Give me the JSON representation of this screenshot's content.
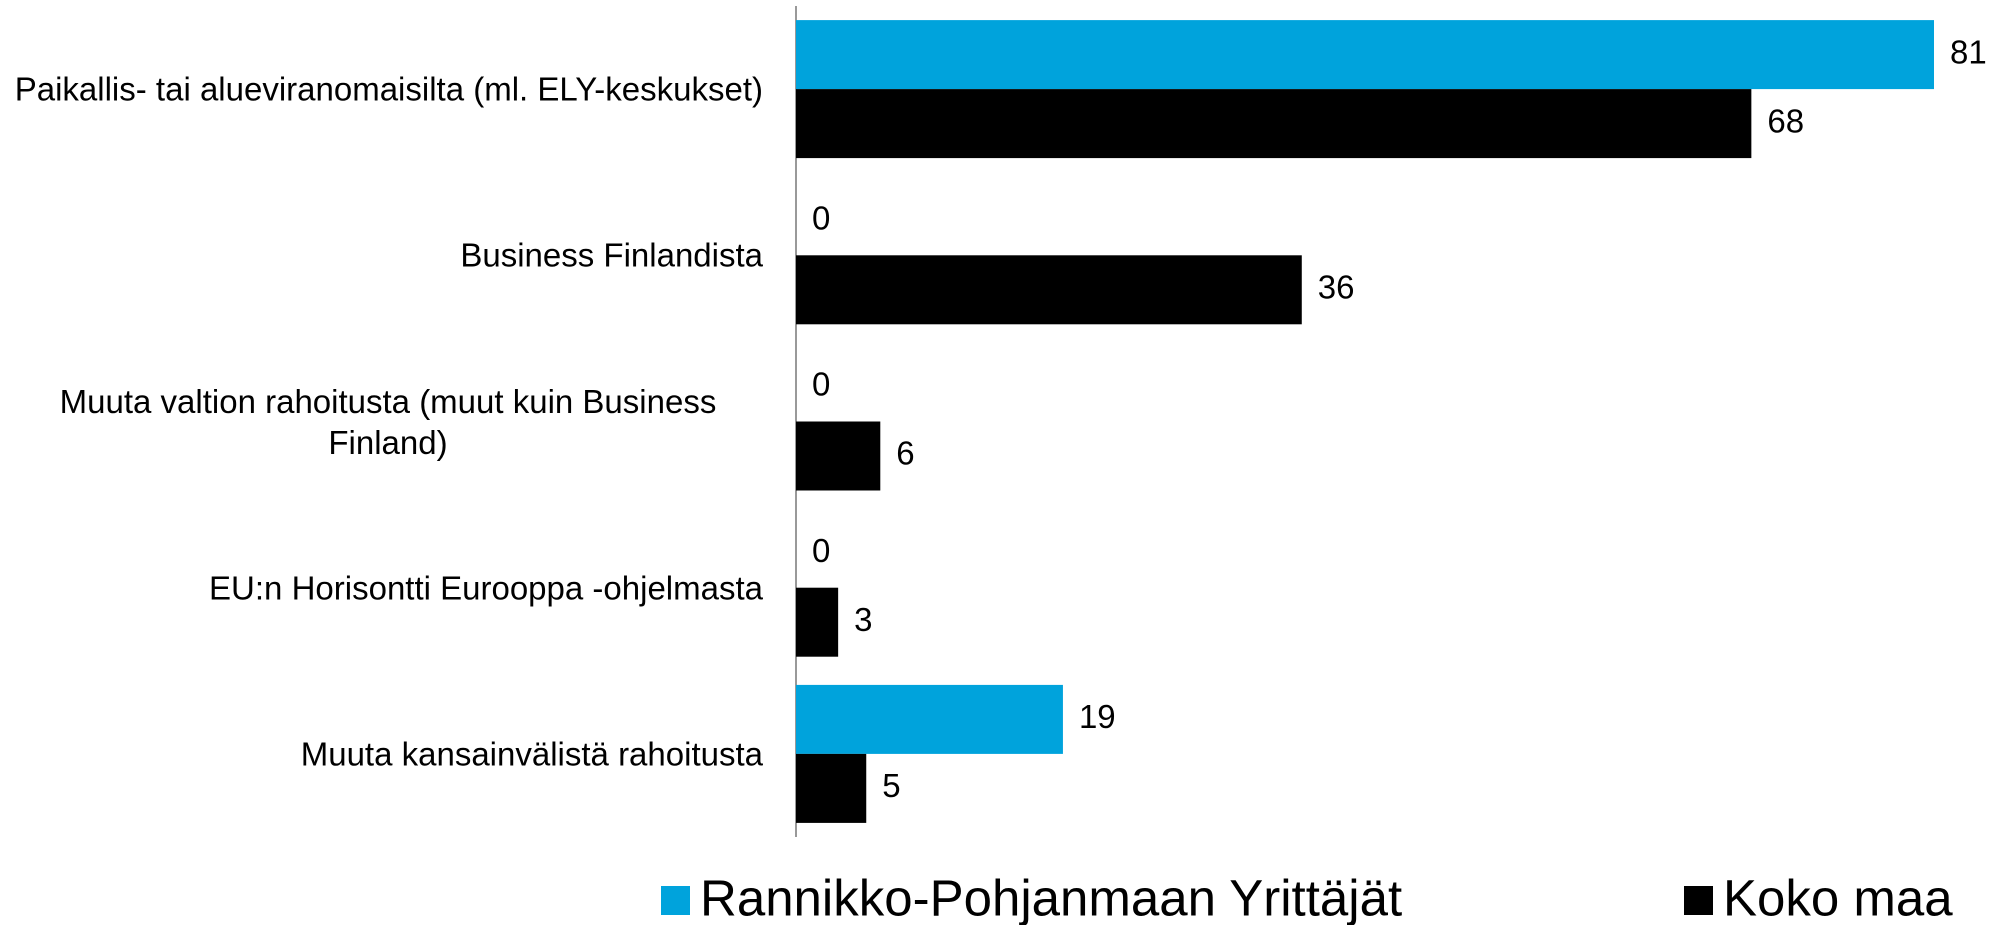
{
  "chart_data": {
    "type": "bar",
    "orientation": "horizontal",
    "categories": [
      "Paikallis- tai alueviranomaisilta (ml. ELY-keskukset)",
      "Business Finlandista",
      "Muuta valtion rahoitusta (muut kuin Business Finland)",
      "EU:n Horisontti Eurooppa -ohjelmasta",
      "Muuta kansainvälistä rahoitusta"
    ],
    "series": [
      {
        "name": "Rannikko-Pohjanmaan Yrittäjät",
        "color": "#00a3dc",
        "values": [
          81,
          0,
          0,
          0,
          19
        ]
      },
      {
        "name": "Koko maa",
        "color": "#000000",
        "values": [
          68,
          36,
          6,
          3,
          5
        ]
      }
    ],
    "xlim": [
      0,
      81
    ],
    "legend": "bottom"
  }
}
